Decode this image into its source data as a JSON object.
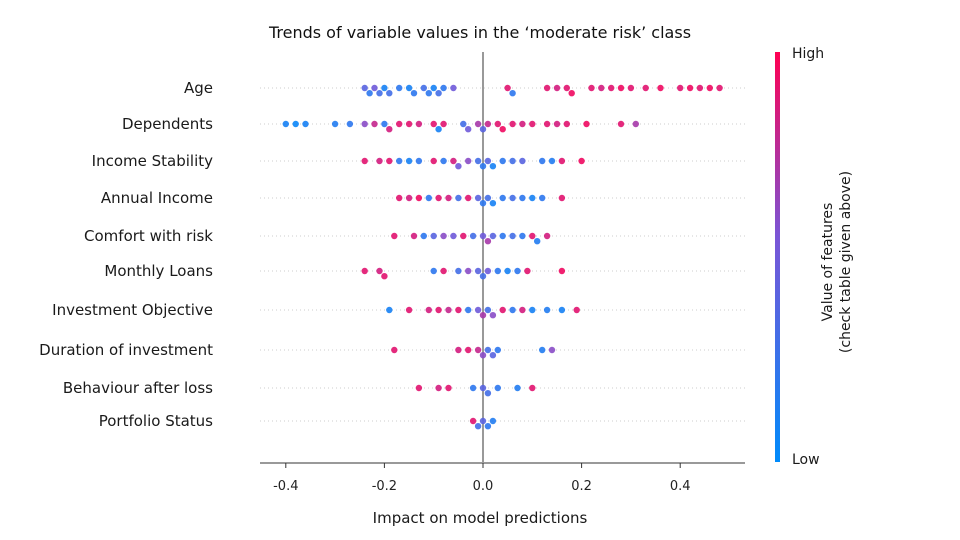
{
  "chart_data": {
    "type": "scatter",
    "subtype": "beeswarm",
    "title": "Trends of variable values in the ‘moderate risk’ class",
    "xlabel": "Impact on model predictions",
    "xlim": [
      -0.45,
      0.53
    ],
    "xticks": [
      -0.4,
      -0.2,
      0.0,
      0.2,
      0.4
    ],
    "xtick_labels": [
      "-0.4",
      "-0.2",
      "0.0",
      "0.2",
      "0.4"
    ],
    "colorbar": {
      "label_line1": "Value of features",
      "label_line2": "(check table given above)",
      "high": "High",
      "low": "Low",
      "high_color": "#ff0052",
      "low_color": "#008bfb"
    },
    "grid": false,
    "legend": "colorbar-right",
    "features": [
      {
        "name": "Age",
        "points": [
          {
            "x": -0.24,
            "v": 0.4
          },
          {
            "x": -0.23,
            "v": 0.2
          },
          {
            "x": -0.22,
            "v": 0.5
          },
          {
            "x": -0.21,
            "v": 0.3
          },
          {
            "x": -0.2,
            "v": 0.1
          },
          {
            "x": -0.19,
            "v": 0.3
          },
          {
            "x": -0.17,
            "v": 0.2
          },
          {
            "x": -0.15,
            "v": 0.1
          },
          {
            "x": -0.14,
            "v": 0.2
          },
          {
            "x": -0.12,
            "v": 0.3
          },
          {
            "x": -0.11,
            "v": 0.2
          },
          {
            "x": -0.1,
            "v": 0.1
          },
          {
            "x": -0.09,
            "v": 0.3
          },
          {
            "x": -0.08,
            "v": 0.2
          },
          {
            "x": -0.06,
            "v": 0.5
          },
          {
            "x": 0.05,
            "v": 0.9
          },
          {
            "x": 0.06,
            "v": 0.2
          },
          {
            "x": 0.13,
            "v": 0.9
          },
          {
            "x": 0.15,
            "v": 0.85
          },
          {
            "x": 0.17,
            "v": 0.9
          },
          {
            "x": 0.18,
            "v": 0.95
          },
          {
            "x": 0.22,
            "v": 0.9
          },
          {
            "x": 0.24,
            "v": 0.85
          },
          {
            "x": 0.26,
            "v": 0.9
          },
          {
            "x": 0.28,
            "v": 0.95
          },
          {
            "x": 0.3,
            "v": 0.9
          },
          {
            "x": 0.33,
            "v": 0.9
          },
          {
            "x": 0.36,
            "v": 0.95
          },
          {
            "x": 0.4,
            "v": 0.9
          },
          {
            "x": 0.42,
            "v": 0.95
          },
          {
            "x": 0.44,
            "v": 0.9
          },
          {
            "x": 0.46,
            "v": 0.95
          },
          {
            "x": 0.48,
            "v": 0.9
          }
        ]
      },
      {
        "name": "Dependents",
        "points": [
          {
            "x": -0.4,
            "v": 0.1
          },
          {
            "x": -0.38,
            "v": 0.05
          },
          {
            "x": -0.36,
            "v": 0.1
          },
          {
            "x": -0.3,
            "v": 0.15
          },
          {
            "x": -0.27,
            "v": 0.2
          },
          {
            "x": -0.24,
            "v": 0.6
          },
          {
            "x": -0.22,
            "v": 0.8
          },
          {
            "x": -0.2,
            "v": 0.2
          },
          {
            "x": -0.19,
            "v": 0.85
          },
          {
            "x": -0.17,
            "v": 0.9
          },
          {
            "x": -0.15,
            "v": 0.9
          },
          {
            "x": -0.13,
            "v": 0.85
          },
          {
            "x": -0.1,
            "v": 0.9
          },
          {
            "x": -0.09,
            "v": 0.1
          },
          {
            "x": -0.08,
            "v": 0.9
          },
          {
            "x": -0.04,
            "v": 0.3
          },
          {
            "x": -0.03,
            "v": 0.5
          },
          {
            "x": -0.01,
            "v": 0.7
          },
          {
            "x": 0.0,
            "v": 0.4
          },
          {
            "x": 0.01,
            "v": 0.8
          },
          {
            "x": 0.03,
            "v": 0.9
          },
          {
            "x": 0.04,
            "v": 0.95
          },
          {
            "x": 0.06,
            "v": 0.9
          },
          {
            "x": 0.08,
            "v": 0.85
          },
          {
            "x": 0.1,
            "v": 0.9
          },
          {
            "x": 0.13,
            "v": 0.9
          },
          {
            "x": 0.15,
            "v": 0.85
          },
          {
            "x": 0.17,
            "v": 0.9
          },
          {
            "x": 0.21,
            "v": 0.95
          },
          {
            "x": 0.28,
            "v": 0.9
          },
          {
            "x": 0.31,
            "v": 0.7
          }
        ]
      },
      {
        "name": "Income Stability",
        "points": [
          {
            "x": -0.24,
            "v": 0.9
          },
          {
            "x": -0.21,
            "v": 0.85
          },
          {
            "x": -0.19,
            "v": 0.9
          },
          {
            "x": -0.17,
            "v": 0.2
          },
          {
            "x": -0.15,
            "v": 0.1
          },
          {
            "x": -0.13,
            "v": 0.2
          },
          {
            "x": -0.1,
            "v": 0.9
          },
          {
            "x": -0.08,
            "v": 0.2
          },
          {
            "x": -0.06,
            "v": 0.85
          },
          {
            "x": -0.05,
            "v": 0.5
          },
          {
            "x": -0.03,
            "v": 0.6
          },
          {
            "x": -0.01,
            "v": 0.3
          },
          {
            "x": 0.0,
            "v": 0.2
          },
          {
            "x": 0.01,
            "v": 0.4
          },
          {
            "x": 0.02,
            "v": 0.1
          },
          {
            "x": 0.04,
            "v": 0.2
          },
          {
            "x": 0.06,
            "v": 0.3
          },
          {
            "x": 0.08,
            "v": 0.4
          },
          {
            "x": 0.12,
            "v": 0.2
          },
          {
            "x": 0.14,
            "v": 0.15
          },
          {
            "x": 0.16,
            "v": 0.9
          },
          {
            "x": 0.2,
            "v": 0.95
          }
        ]
      },
      {
        "name": "Annual Income",
        "points": [
          {
            "x": -0.17,
            "v": 0.9
          },
          {
            "x": -0.15,
            "v": 0.85
          },
          {
            "x": -0.13,
            "v": 0.95
          },
          {
            "x": -0.11,
            "v": 0.2
          },
          {
            "x": -0.09,
            "v": 0.9
          },
          {
            "x": -0.07,
            "v": 0.85
          },
          {
            "x": -0.05,
            "v": 0.3
          },
          {
            "x": -0.03,
            "v": 0.9
          },
          {
            "x": -0.01,
            "v": 0.4
          },
          {
            "x": 0.0,
            "v": 0.2
          },
          {
            "x": 0.01,
            "v": 0.3
          },
          {
            "x": 0.02,
            "v": 0.1
          },
          {
            "x": 0.04,
            "v": 0.2
          },
          {
            "x": 0.06,
            "v": 0.3
          },
          {
            "x": 0.08,
            "v": 0.2
          },
          {
            "x": 0.1,
            "v": 0.1
          },
          {
            "x": 0.12,
            "v": 0.2
          },
          {
            "x": 0.16,
            "v": 0.9
          }
        ]
      },
      {
        "name": "Comfort with risk",
        "points": [
          {
            "x": -0.18,
            "v": 0.9
          },
          {
            "x": -0.14,
            "v": 0.85
          },
          {
            "x": -0.12,
            "v": 0.2
          },
          {
            "x": -0.1,
            "v": 0.4
          },
          {
            "x": -0.08,
            "v": 0.6
          },
          {
            "x": -0.06,
            "v": 0.5
          },
          {
            "x": -0.04,
            "v": 0.9
          },
          {
            "x": -0.02,
            "v": 0.3
          },
          {
            "x": 0.0,
            "v": 0.5
          },
          {
            "x": 0.01,
            "v": 0.7
          },
          {
            "x": 0.02,
            "v": 0.4
          },
          {
            "x": 0.04,
            "v": 0.2
          },
          {
            "x": 0.06,
            "v": 0.3
          },
          {
            "x": 0.08,
            "v": 0.2
          },
          {
            "x": 0.1,
            "v": 0.9
          },
          {
            "x": 0.11,
            "v": 0.15
          },
          {
            "x": 0.13,
            "v": 0.85
          }
        ]
      },
      {
        "name": "Monthly Loans",
        "points": [
          {
            "x": -0.24,
            "v": 0.9
          },
          {
            "x": -0.21,
            "v": 0.85
          },
          {
            "x": -0.2,
            "v": 0.9
          },
          {
            "x": -0.1,
            "v": 0.2
          },
          {
            "x": -0.08,
            "v": 0.9
          },
          {
            "x": -0.05,
            "v": 0.3
          },
          {
            "x": -0.03,
            "v": 0.6
          },
          {
            "x": -0.01,
            "v": 0.4
          },
          {
            "x": 0.0,
            "v": 0.3
          },
          {
            "x": 0.01,
            "v": 0.5
          },
          {
            "x": 0.03,
            "v": 0.2
          },
          {
            "x": 0.05,
            "v": 0.1
          },
          {
            "x": 0.07,
            "v": 0.2
          },
          {
            "x": 0.09,
            "v": 0.9
          },
          {
            "x": 0.16,
            "v": 0.95
          }
        ]
      },
      {
        "name": "Investment Objective",
        "points": [
          {
            "x": -0.19,
            "v": 0.1
          },
          {
            "x": -0.15,
            "v": 0.9
          },
          {
            "x": -0.11,
            "v": 0.85
          },
          {
            "x": -0.09,
            "v": 0.9
          },
          {
            "x": -0.07,
            "v": 0.8
          },
          {
            "x": -0.05,
            "v": 0.9
          },
          {
            "x": -0.03,
            "v": 0.2
          },
          {
            "x": -0.01,
            "v": 0.5
          },
          {
            "x": 0.0,
            "v": 0.7
          },
          {
            "x": 0.01,
            "v": 0.3
          },
          {
            "x": 0.02,
            "v": 0.6
          },
          {
            "x": 0.04,
            "v": 0.9
          },
          {
            "x": 0.06,
            "v": 0.2
          },
          {
            "x": 0.08,
            "v": 0.85
          },
          {
            "x": 0.1,
            "v": 0.1
          },
          {
            "x": 0.13,
            "v": 0.15
          },
          {
            "x": 0.16,
            "v": 0.1
          },
          {
            "x": 0.19,
            "v": 0.9
          }
        ]
      },
      {
        "name": "Duration of investment",
        "points": [
          {
            "x": -0.18,
            "v": 0.9
          },
          {
            "x": -0.05,
            "v": 0.85
          },
          {
            "x": -0.03,
            "v": 0.9
          },
          {
            "x": -0.01,
            "v": 0.8
          },
          {
            "x": 0.0,
            "v": 0.6
          },
          {
            "x": 0.01,
            "v": 0.3
          },
          {
            "x": 0.02,
            "v": 0.4
          },
          {
            "x": 0.03,
            "v": 0.2
          },
          {
            "x": 0.12,
            "v": 0.15
          },
          {
            "x": 0.14,
            "v": 0.6
          }
        ]
      },
      {
        "name": "Behaviour after loss",
        "points": [
          {
            "x": -0.13,
            "v": 0.9
          },
          {
            "x": -0.09,
            "v": 0.85
          },
          {
            "x": -0.07,
            "v": 0.9
          },
          {
            "x": -0.02,
            "v": 0.2
          },
          {
            "x": 0.0,
            "v": 0.4
          },
          {
            "x": 0.01,
            "v": 0.3
          },
          {
            "x": 0.03,
            "v": 0.2
          },
          {
            "x": 0.07,
            "v": 0.15
          },
          {
            "x": 0.1,
            "v": 0.9
          }
        ]
      },
      {
        "name": "Portfolio Status",
        "points": [
          {
            "x": -0.02,
            "v": 0.9
          },
          {
            "x": -0.01,
            "v": 0.3
          },
          {
            "x": 0.0,
            "v": 0.4
          },
          {
            "x": 0.01,
            "v": 0.2
          },
          {
            "x": 0.02,
            "v": 0.15
          }
        ]
      }
    ]
  }
}
